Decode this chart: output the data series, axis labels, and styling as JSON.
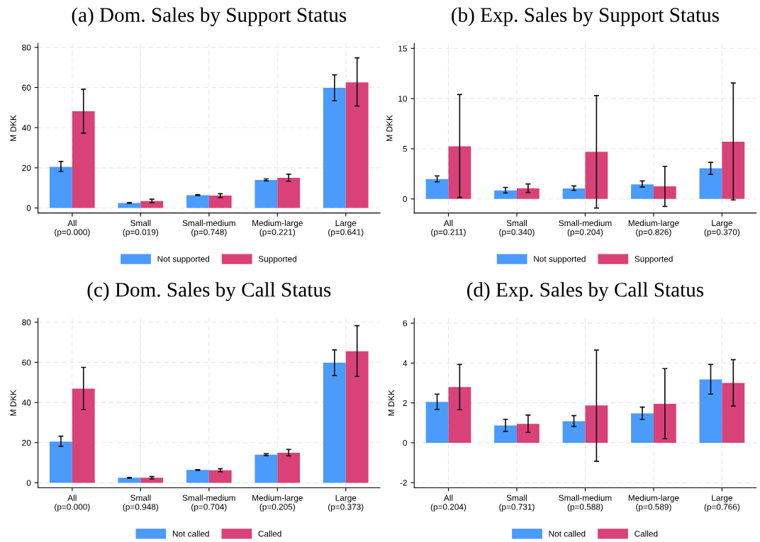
{
  "chart_data": [
    {
      "type": "bar",
      "title": "(a) Dom. Sales by Support Status",
      "ylabel": "M DKK",
      "categories": [
        "All\n(p=0.000)",
        "Small\n(p=0.019)",
        "Small-medium\n(p=0.748)",
        "Medium-large\n(p=0.221)",
        "Large\n(p=0.641)"
      ],
      "ylim": [
        -2.5,
        82
      ],
      "yticks": [
        0,
        20,
        40,
        60,
        80
      ],
      "grid": true,
      "legend": "bottom",
      "series": [
        {
          "name": "Not supported",
          "color": "#4a9bfb",
          "values": [
            20.5,
            2.5,
            6.4,
            14.0,
            59.8
          ],
          "errors": [
            [
              18.2,
              23.2
            ],
            [
              2.3,
              2.7
            ],
            [
              6.2,
              6.6
            ],
            [
              13.5,
              14.5
            ],
            [
              53.4,
              66.3
            ]
          ]
        },
        {
          "name": "Supported",
          "color": "#d94277",
          "values": [
            48.2,
            3.5,
            6.2,
            15.0,
            62.6
          ],
          "errors": [
            [
              37.3,
              59.2
            ],
            [
              2.6,
              4.4
            ],
            [
              5.2,
              7.1
            ],
            [
              13.3,
              16.8
            ],
            [
              50.8,
              74.8
            ]
          ]
        }
      ]
    },
    {
      "type": "bar",
      "title": "(b) Exp. Sales by Support Status",
      "ylabel": "M DKK",
      "categories": [
        "All\n(p=0.211)",
        "Small\n(p=0.340)",
        "Small-medium\n(p=0.204)",
        "Medium-large\n(p=0.826)",
        "Large\n(p=0.370)"
      ],
      "ylim": [
        -1.4,
        15.5
      ],
      "yticks": [
        0,
        5,
        10,
        15
      ],
      "grid": true,
      "legend": "bottom",
      "series": [
        {
          "name": "Not supported",
          "color": "#4a9bfb",
          "values": [
            1.98,
            0.85,
            1.05,
            1.45,
            3.05
          ],
          "errors": [
            [
              1.7,
              2.3
            ],
            [
              0.6,
              1.15
            ],
            [
              0.85,
              1.3
            ],
            [
              1.2,
              1.8
            ],
            [
              2.45,
              3.65
            ]
          ]
        },
        {
          "name": "Supported",
          "color": "#d94277",
          "values": [
            5.25,
            1.07,
            4.7,
            1.25,
            5.7
          ],
          "errors": [
            [
              0.15,
              10.4
            ],
            [
              0.65,
              1.5
            ],
            [
              -0.9,
              10.3
            ],
            [
              -0.75,
              3.25
            ],
            [
              -0.1,
              11.55
            ]
          ]
        }
      ]
    },
    {
      "type": "bar",
      "title": "(c) Dom. Sales by Call Status",
      "ylabel": "M DKK",
      "categories": [
        "All\n(p=0.000)",
        "Small\n(p=0.948)",
        "Small-medium\n(p=0.704)",
        "Medium-large\n(p=0.205)",
        "Large\n(p=0.373)"
      ],
      "ylim": [
        -2.5,
        82
      ],
      "yticks": [
        0,
        20,
        40,
        60,
        80
      ],
      "grid": true,
      "legend": "bottom",
      "series": [
        {
          "name": "Not called",
          "color": "#4a9bfb",
          "values": [
            20.5,
            2.5,
            6.4,
            14.0,
            59.8
          ],
          "errors": [
            [
              18.2,
              23.2
            ],
            [
              2.3,
              2.7
            ],
            [
              6.2,
              6.6
            ],
            [
              13.5,
              14.5
            ],
            [
              53.4,
              66.2
            ]
          ]
        },
        {
          "name": "Called",
          "color": "#d94277",
          "values": [
            46.9,
            2.5,
            6.2,
            15.0,
            65.5
          ],
          "errors": [
            [
              36.5,
              57.5
            ],
            [
              1.9,
              3.1
            ],
            [
              5.5,
              7.0
            ],
            [
              13.4,
              16.6
            ],
            [
              53.0,
              78.3
            ]
          ]
        }
      ]
    },
    {
      "type": "bar",
      "title": "(d) Exp. Sales by Call Status",
      "ylabel": "M DKK",
      "categories": [
        "All\n(p=0.204)",
        "Small\n(p=0.731)",
        "Small-medium\n(p=0.588)",
        "Medium-large\n(p=0.589)",
        "Large\n(p=0.766)"
      ],
      "ylim": [
        -2.26,
        6.25
      ],
      "yticks": [
        -2,
        0,
        2,
        4,
        6
      ],
      "grid": true,
      "legend": "bottom",
      "series": [
        {
          "name": "Not called",
          "color": "#4a9bfb",
          "values": [
            2.05,
            0.87,
            1.08,
            1.47,
            3.18
          ],
          "errors": [
            [
              1.67,
              2.44
            ],
            [
              0.57,
              1.18
            ],
            [
              0.82,
              1.36
            ],
            [
              1.17,
              1.79
            ],
            [
              2.44,
              3.93
            ]
          ]
        },
        {
          "name": "Called",
          "color": "#d94277",
          "values": [
            2.8,
            0.95,
            1.87,
            1.95,
            3.0
          ],
          "errors": [
            [
              1.66,
              3.93
            ],
            [
              0.52,
              1.39
            ],
            [
              -0.93,
              4.65
            ],
            [
              0.2,
              3.72
            ],
            [
              1.84,
              4.17
            ]
          ]
        }
      ]
    }
  ]
}
